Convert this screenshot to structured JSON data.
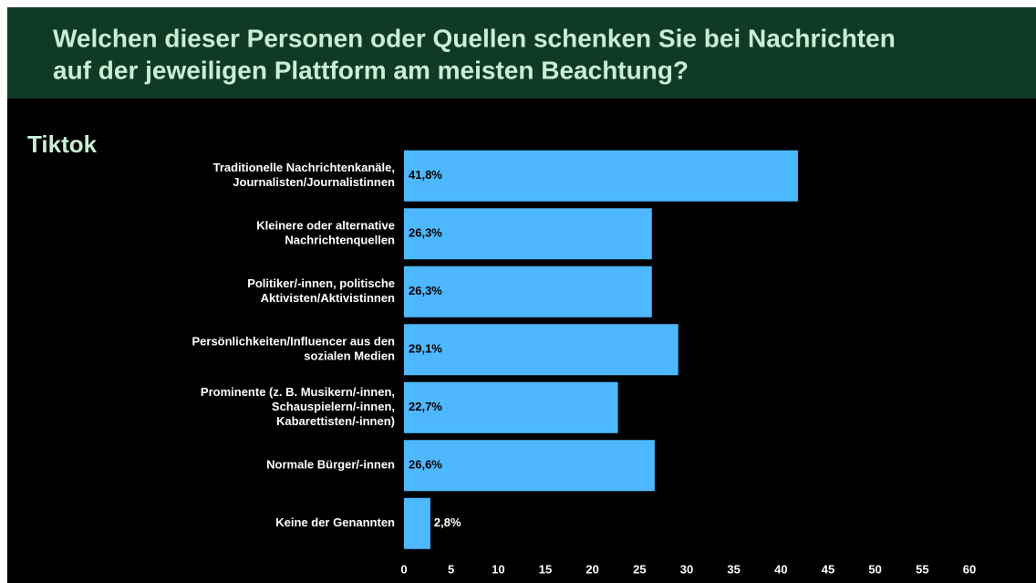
{
  "chart_data": {
    "type": "barh",
    "title": "Welchen dieser Personen oder Quellen schenken Sie bei Nachrichten\nauf der jeweiligen Plattform am meisten Beachtung?",
    "subtitle": "Tiktok",
    "categories": [
      "Traditionelle Nachrichtenkanäle,\nJournalisten/Journalistinnen",
      "Kleinere oder alternative\nNachrichtenquellen",
      "Politiker/-innen, politische\nAktivisten/Aktivistinnen",
      "Persönlichkeiten/Influencer aus den\nsozialen Medien",
      "Prominente (z. B. Musikern/-innen,\nSchauspielern/-innen,\nKabarettisten/-innen)",
      "Normale Bürger/-innen",
      "Keine der Genannten"
    ],
    "values": [
      41.8,
      26.3,
      26.3,
      29.1,
      22.7,
      26.6,
      2.8
    ],
    "value_labels": [
      "41,8%",
      "26,3%",
      "26,3%",
      "29,1%",
      "22,7%",
      "26,6%",
      "2,8%"
    ],
    "color": "#4db8ff",
    "xlim": [
      0,
      60
    ],
    "xticks": [
      0,
      5,
      10,
      15,
      20,
      25,
      30,
      35,
      40,
      45,
      50,
      55,
      60
    ],
    "grid": false
  }
}
